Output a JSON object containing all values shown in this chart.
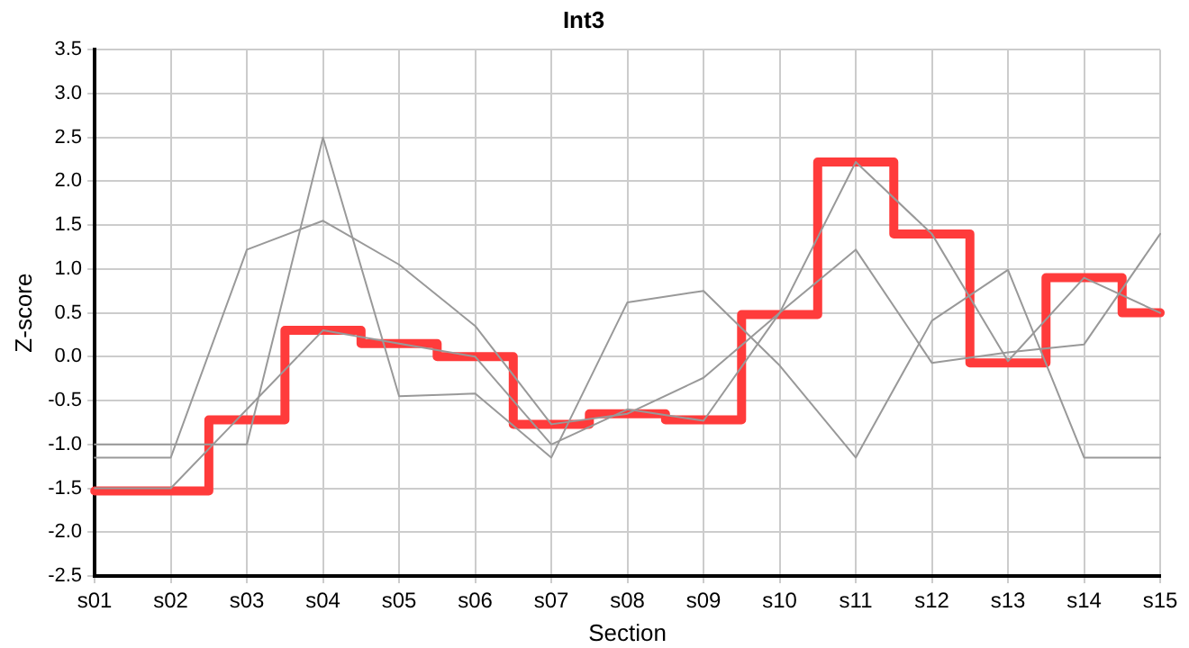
{
  "chart_data": {
    "type": "line",
    "title": "Int3",
    "xlabel": "Section",
    "ylabel": "Z-score",
    "categories": [
      "s01",
      "s02",
      "s03",
      "s04",
      "s05",
      "s06",
      "s07",
      "s08",
      "s09",
      "s10",
      "s11",
      "s12",
      "s13",
      "s14",
      "s15"
    ],
    "series": [
      {
        "type": "line",
        "color": "#999999",
        "values": [
          -1.0,
          -1.0,
          -1.0,
          2.5,
          -0.45,
          -0.42,
          -1.15,
          0.62,
          0.75,
          -0.1,
          -1.15,
          0.41,
          0.99,
          -1.15,
          -1.15
        ]
      },
      {
        "type": "line",
        "color": "#999999",
        "values": [
          -1.15,
          -1.15,
          1.22,
          1.55,
          1.05,
          0.35,
          -0.77,
          -0.65,
          -0.24,
          0.5,
          1.22,
          -0.07,
          0.05,
          0.14,
          1.4
        ]
      },
      {
        "type": "line",
        "color": "#999999",
        "values": [
          -1.5,
          -1.5,
          -0.6,
          0.3,
          0.15,
          0.0,
          -1.0,
          -0.6,
          -0.73,
          0.5,
          2.22,
          1.4,
          -0.05,
          0.9,
          0.5
        ]
      },
      {
        "type": "step",
        "color": "#ff3b3b",
        "values": [
          -1.53,
          -1.53,
          -0.72,
          0.3,
          0.15,
          0.0,
          -0.77,
          -0.65,
          -0.72,
          0.48,
          2.22,
          1.4,
          -0.07,
          0.9,
          0.5
        ]
      }
    ],
    "ylim": [
      -2.5,
      3.5
    ],
    "yticks": [
      {
        "value": -2.5,
        "label": "-2.5"
      },
      {
        "value": -2,
        "label": "-2.0"
      },
      {
        "value": -1.5,
        "label": "-1.5"
      },
      {
        "value": -1,
        "label": "-1.0"
      },
      {
        "value": -0.5,
        "label": "-0.5"
      },
      {
        "value": 0,
        "label": "0.0"
      },
      {
        "value": 0.5,
        "label": "0.5"
      },
      {
        "value": 1,
        "label": "1.0"
      },
      {
        "value": 1.5,
        "label": "1.5"
      },
      {
        "value": 2,
        "label": "2.0"
      },
      {
        "value": 2.5,
        "label": "2.5"
      },
      {
        "value": 3,
        "label": "3.0"
      },
      {
        "value": 3.5,
        "label": "3.5"
      }
    ],
    "grid": true,
    "legend": false
  }
}
